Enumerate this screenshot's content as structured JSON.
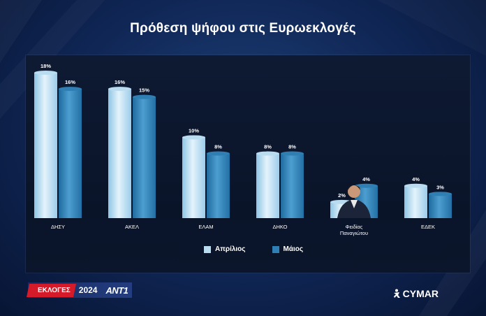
{
  "title": "Πρόθεση ψήφου στις Ευρωεκλογές",
  "colors": {
    "april": "#b9dcf0",
    "may": "#2f7fb4"
  },
  "legend": {
    "april": "Απρίλιος",
    "may": "Μάιος"
  },
  "footer": {
    "elections_label": "ΕΚΛΟΓΕΣ",
    "year": "2024",
    "channel": "ANT1",
    "pollster": "CYMAR"
  },
  "chart_data": {
    "type": "bar",
    "title": "Πρόθεση ψήφου στις Ευρωεκλογές",
    "categories": [
      "ΔΗΣΥ",
      "ΑΚΕΛ",
      "ΕΛΑΜ",
      "ΔΗΚΟ",
      "Φειδίας Παναγιώτου",
      "ΕΔΕΚ"
    ],
    "series": [
      {
        "name": "Απρίλιος",
        "values": [
          18,
          16,
          10,
          8,
          2,
          4
        ]
      },
      {
        "name": "Μάιος",
        "values": [
          16,
          15,
          8,
          8,
          4,
          3
        ]
      }
    ],
    "value_suffix": "%",
    "ylim": [
      0,
      18
    ],
    "grid": false,
    "legend_position": "bottom-center"
  }
}
